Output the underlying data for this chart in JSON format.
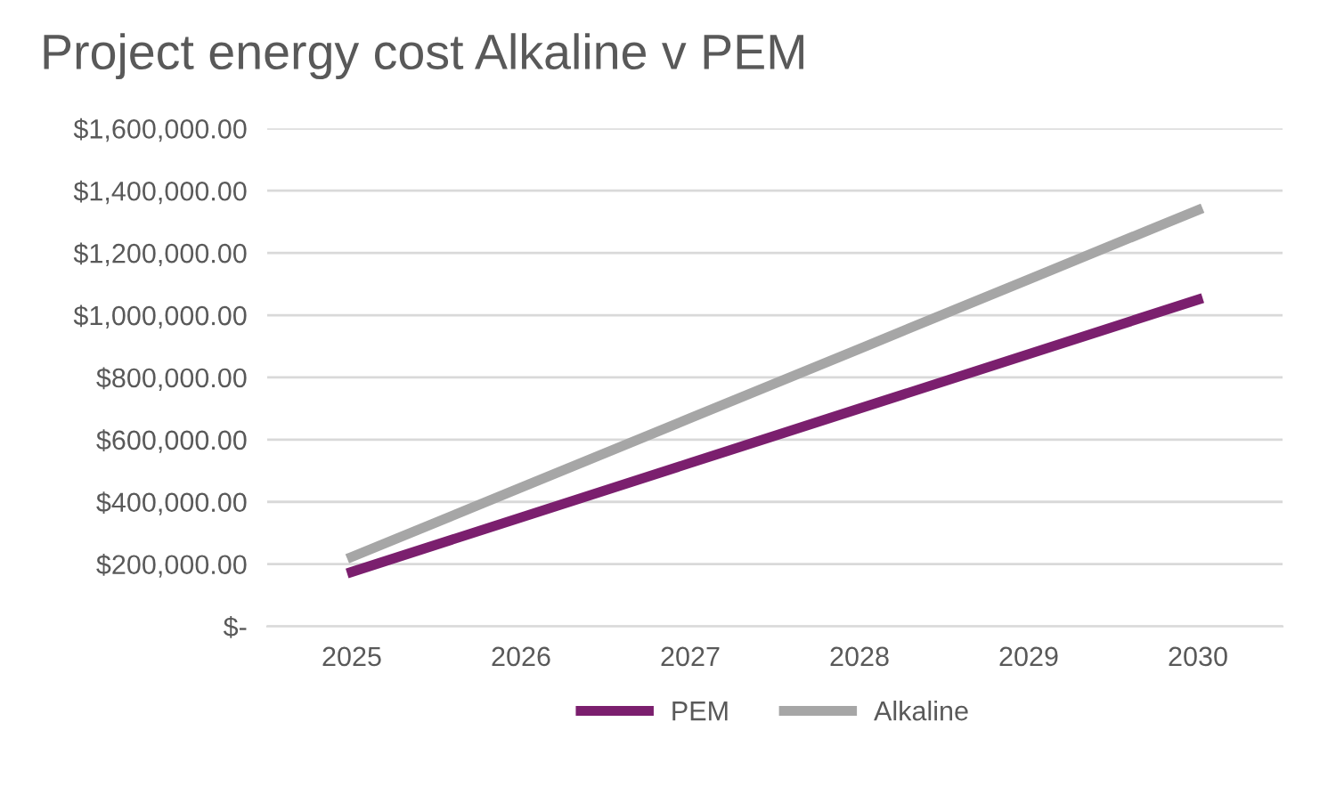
{
  "chart_data": {
    "type": "line",
    "title": "Project energy cost Alkaline v PEM",
    "categories": [
      "2025",
      "2026",
      "2027",
      "2028",
      "2029",
      "2030"
    ],
    "series": [
      {
        "name": "PEM",
        "color": "#7b1f6e",
        "values": [
          175000,
          350000,
          525000,
          700000,
          875000,
          1050000
        ]
      },
      {
        "name": "Alkaline",
        "color": "#a6a6a6",
        "values": [
          223000,
          446000,
          669000,
          892000,
          1115000,
          1338000
        ]
      }
    ],
    "ylim": [
      0,
      1600000
    ],
    "yticks": [
      {
        "value": 0,
        "label": "$-"
      },
      {
        "value": 200000,
        "label": "$200,000.00"
      },
      {
        "value": 400000,
        "label": "$400,000.00"
      },
      {
        "value": 600000,
        "label": "$600,000.00"
      },
      {
        "value": 800000,
        "label": "$800,000.00"
      },
      {
        "value": 1000000,
        "label": "$1,000,000.00"
      },
      {
        "value": 1200000,
        "label": "$1,200,000.00"
      },
      {
        "value": 1400000,
        "label": "$1,400,000.00"
      },
      {
        "value": 1600000,
        "label": "$1,600,000.00"
      }
    ],
    "grid": "y",
    "legend": "bottom",
    "marker": "none",
    "line_style": "solid"
  }
}
